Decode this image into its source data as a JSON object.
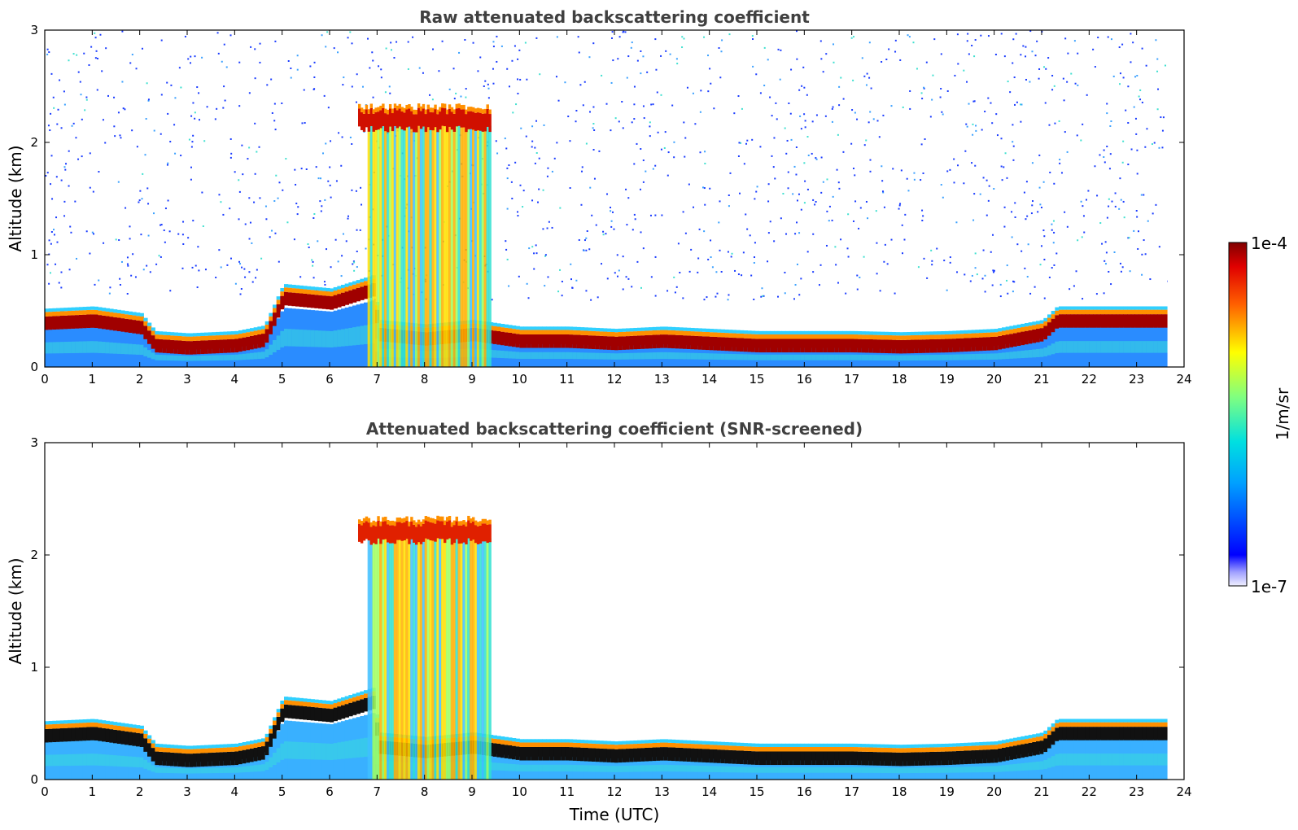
{
  "chart_data": [
    {
      "type": "heatmap",
      "title": "Raw attenuated backscattering coefficient",
      "xlabel": "",
      "ylabel": "Altitude (km)",
      "xlim": [
        0,
        24
      ],
      "ylim": [
        0,
        3
      ],
      "xticks": [
        "0",
        "1",
        "2",
        "3",
        "4",
        "5",
        "6",
        "7",
        "8",
        "9",
        "10",
        "11",
        "12",
        "13",
        "14",
        "15",
        "16",
        "17",
        "18",
        "19",
        "20",
        "21",
        "22",
        "23",
        "24"
      ],
      "yticks": [
        "0",
        "1",
        "2",
        "3"
      ],
      "boundary_layer_top_km": [
        [
          0,
          0.4
        ],
        [
          1,
          0.42
        ],
        [
          2,
          0.36
        ],
        [
          2.3,
          0.2
        ],
        [
          3,
          0.18
        ],
        [
          4,
          0.2
        ],
        [
          4.6,
          0.25
        ],
        [
          5,
          0.62
        ],
        [
          6,
          0.58
        ],
        [
          6.9,
          0.7
        ],
        [
          7,
          0.3
        ],
        [
          8,
          0.26
        ],
        [
          9,
          0.3
        ],
        [
          10,
          0.24
        ],
        [
          11,
          0.24
        ],
        [
          12,
          0.22
        ],
        [
          13,
          0.24
        ],
        [
          14,
          0.22
        ],
        [
          15,
          0.2
        ],
        [
          16,
          0.2
        ],
        [
          17,
          0.2
        ],
        [
          18,
          0.19
        ],
        [
          19,
          0.2
        ],
        [
          20,
          0.22
        ],
        [
          21,
          0.3
        ],
        [
          21.3,
          0.42
        ],
        [
          22,
          0.42
        ],
        [
          23,
          0.42
        ],
        [
          23.65,
          0.42
        ]
      ],
      "cloud_layer": {
        "x_start": 6.6,
        "x_end": 9.4,
        "altitude_km": 2.2
      },
      "data_end_hour": 23.65,
      "noise_present": true
    },
    {
      "type": "heatmap",
      "title": "Attenuated backscattering coefficient (SNR-screened)",
      "xlabel": "Time (UTC)",
      "ylabel": "Altitude (km)",
      "xlim": [
        0,
        24
      ],
      "ylim": [
        0,
        3
      ],
      "xticks": [
        "0",
        "1",
        "2",
        "3",
        "4",
        "5",
        "6",
        "7",
        "8",
        "9",
        "10",
        "11",
        "12",
        "13",
        "14",
        "15",
        "16",
        "17",
        "18",
        "19",
        "20",
        "21",
        "22",
        "23",
        "24"
      ],
      "yticks": [
        "0",
        "1",
        "2",
        "3"
      ],
      "boundary_layer_top_km": [
        [
          0,
          0.4
        ],
        [
          1,
          0.42
        ],
        [
          2,
          0.36
        ],
        [
          2.3,
          0.2
        ],
        [
          3,
          0.18
        ],
        [
          4,
          0.2
        ],
        [
          4.6,
          0.25
        ],
        [
          5,
          0.62
        ],
        [
          6,
          0.58
        ],
        [
          6.9,
          0.7
        ],
        [
          7,
          0.3
        ],
        [
          8,
          0.26
        ],
        [
          9,
          0.3
        ],
        [
          10,
          0.24
        ],
        [
          11,
          0.24
        ],
        [
          12,
          0.22
        ],
        [
          13,
          0.24
        ],
        [
          14,
          0.22
        ],
        [
          15,
          0.2
        ],
        [
          16,
          0.2
        ],
        [
          17,
          0.2
        ],
        [
          18,
          0.19
        ],
        [
          19,
          0.2
        ],
        [
          20,
          0.22
        ],
        [
          21,
          0.3
        ],
        [
          21.3,
          0.42
        ],
        [
          22,
          0.42
        ],
        [
          23,
          0.42
        ],
        [
          23.65,
          0.42
        ]
      ],
      "cloud_layer": {
        "x_start": 6.6,
        "x_end": 9.4,
        "altitude_km": 2.2
      },
      "data_end_hour": 23.65,
      "noise_present": false
    }
  ],
  "colorbar": {
    "label": "1/m/sr",
    "max_label": "1e-4",
    "min_label": "1e-7",
    "colormap": "jet",
    "scale": "log",
    "range": [
      1e-07,
      0.0001
    ]
  }
}
